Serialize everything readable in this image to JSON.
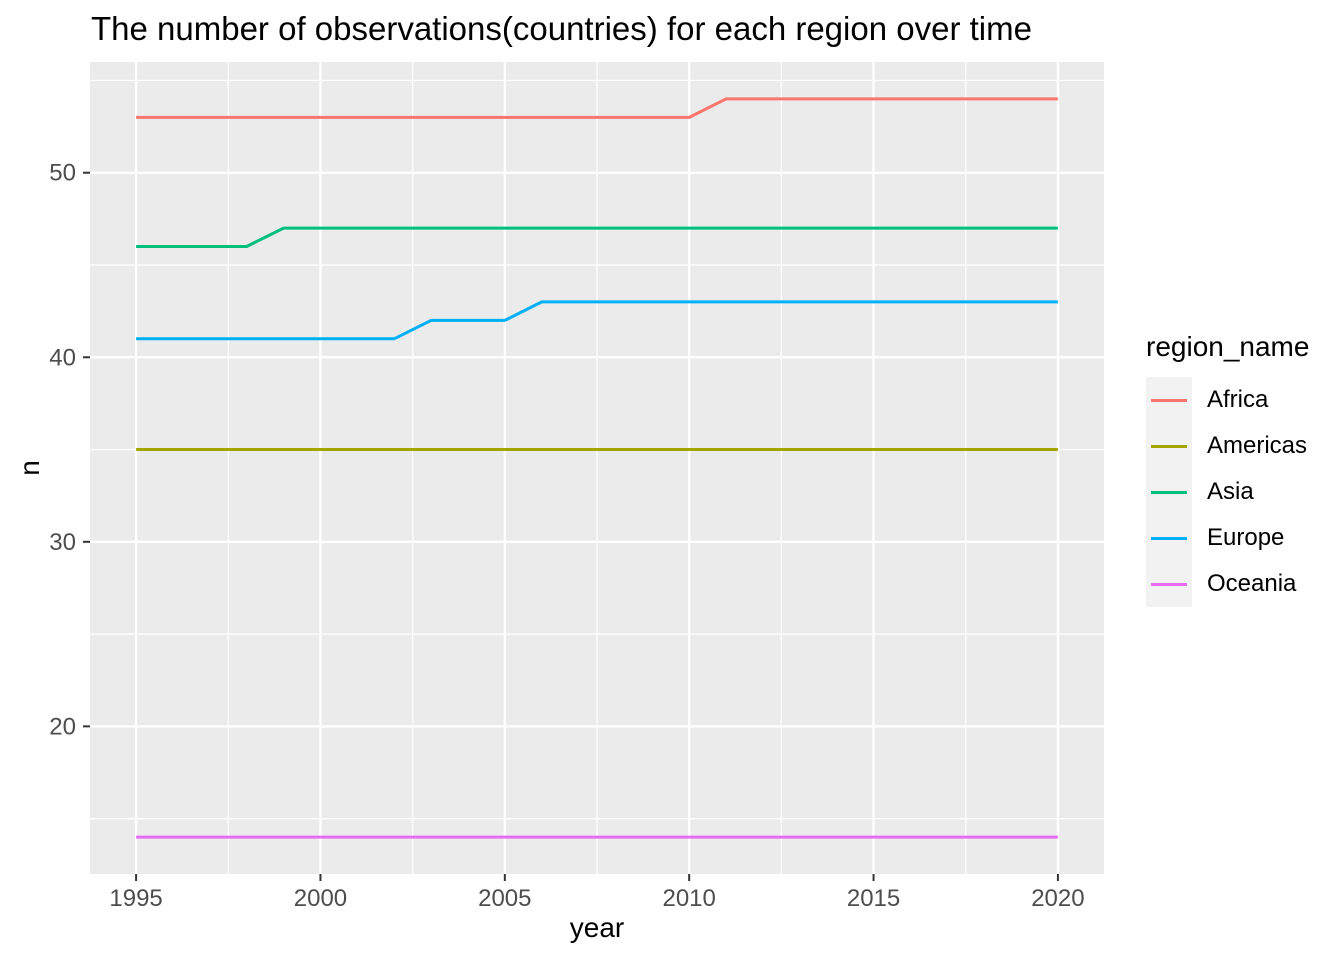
{
  "chart_data": {
    "type": "line",
    "title": "The number of observations(countries) for each region over time",
    "xlabel": "year",
    "ylabel": "n",
    "x_domain": [
      1993.75,
      2021.25
    ],
    "y_domain": [
      12,
      56
    ],
    "x_ticks": [
      1995,
      2000,
      2005,
      2010,
      2015,
      2020
    ],
    "x_minor_ticks": [
      1997.5,
      2002.5,
      2007.5,
      2012.5,
      2017.5
    ],
    "y_ticks": [
      20,
      30,
      40,
      50
    ],
    "y_minor_ticks": [
      15,
      25,
      35,
      45,
      55
    ],
    "legend_title": "region_name",
    "panel_bg": "#EBEBEB",
    "grid_color": "#FFFFFF",
    "tick_mark_color": "#333333",
    "tick_label_color": "#4D4D4D",
    "legend_key_bg": "#F2F2F2",
    "legend_position": "right",
    "grid": true,
    "series": [
      {
        "name": "Africa",
        "color": "#F8766D",
        "points": [
          [
            1995,
            53
          ],
          [
            2010,
            53
          ],
          [
            2011,
            54
          ],
          [
            2020,
            54
          ]
        ]
      },
      {
        "name": "Americas",
        "color": "#A3A500",
        "points": [
          [
            1995,
            35
          ],
          [
            2020,
            35
          ]
        ]
      },
      {
        "name": "Asia",
        "color": "#00BF7D",
        "points": [
          [
            1995,
            46
          ],
          [
            1998,
            46
          ],
          [
            1999,
            47
          ],
          [
            2020,
            47
          ]
        ]
      },
      {
        "name": "Europe",
        "color": "#00B0F6",
        "points": [
          [
            1995,
            41
          ],
          [
            2002,
            41
          ],
          [
            2003,
            42
          ],
          [
            2005,
            42
          ],
          [
            2006,
            43
          ],
          [
            2020,
            43
          ]
        ]
      },
      {
        "name": "Oceania",
        "color": "#E76BF3",
        "points": [
          [
            1995,
            14
          ],
          [
            2020,
            14
          ]
        ]
      }
    ]
  }
}
